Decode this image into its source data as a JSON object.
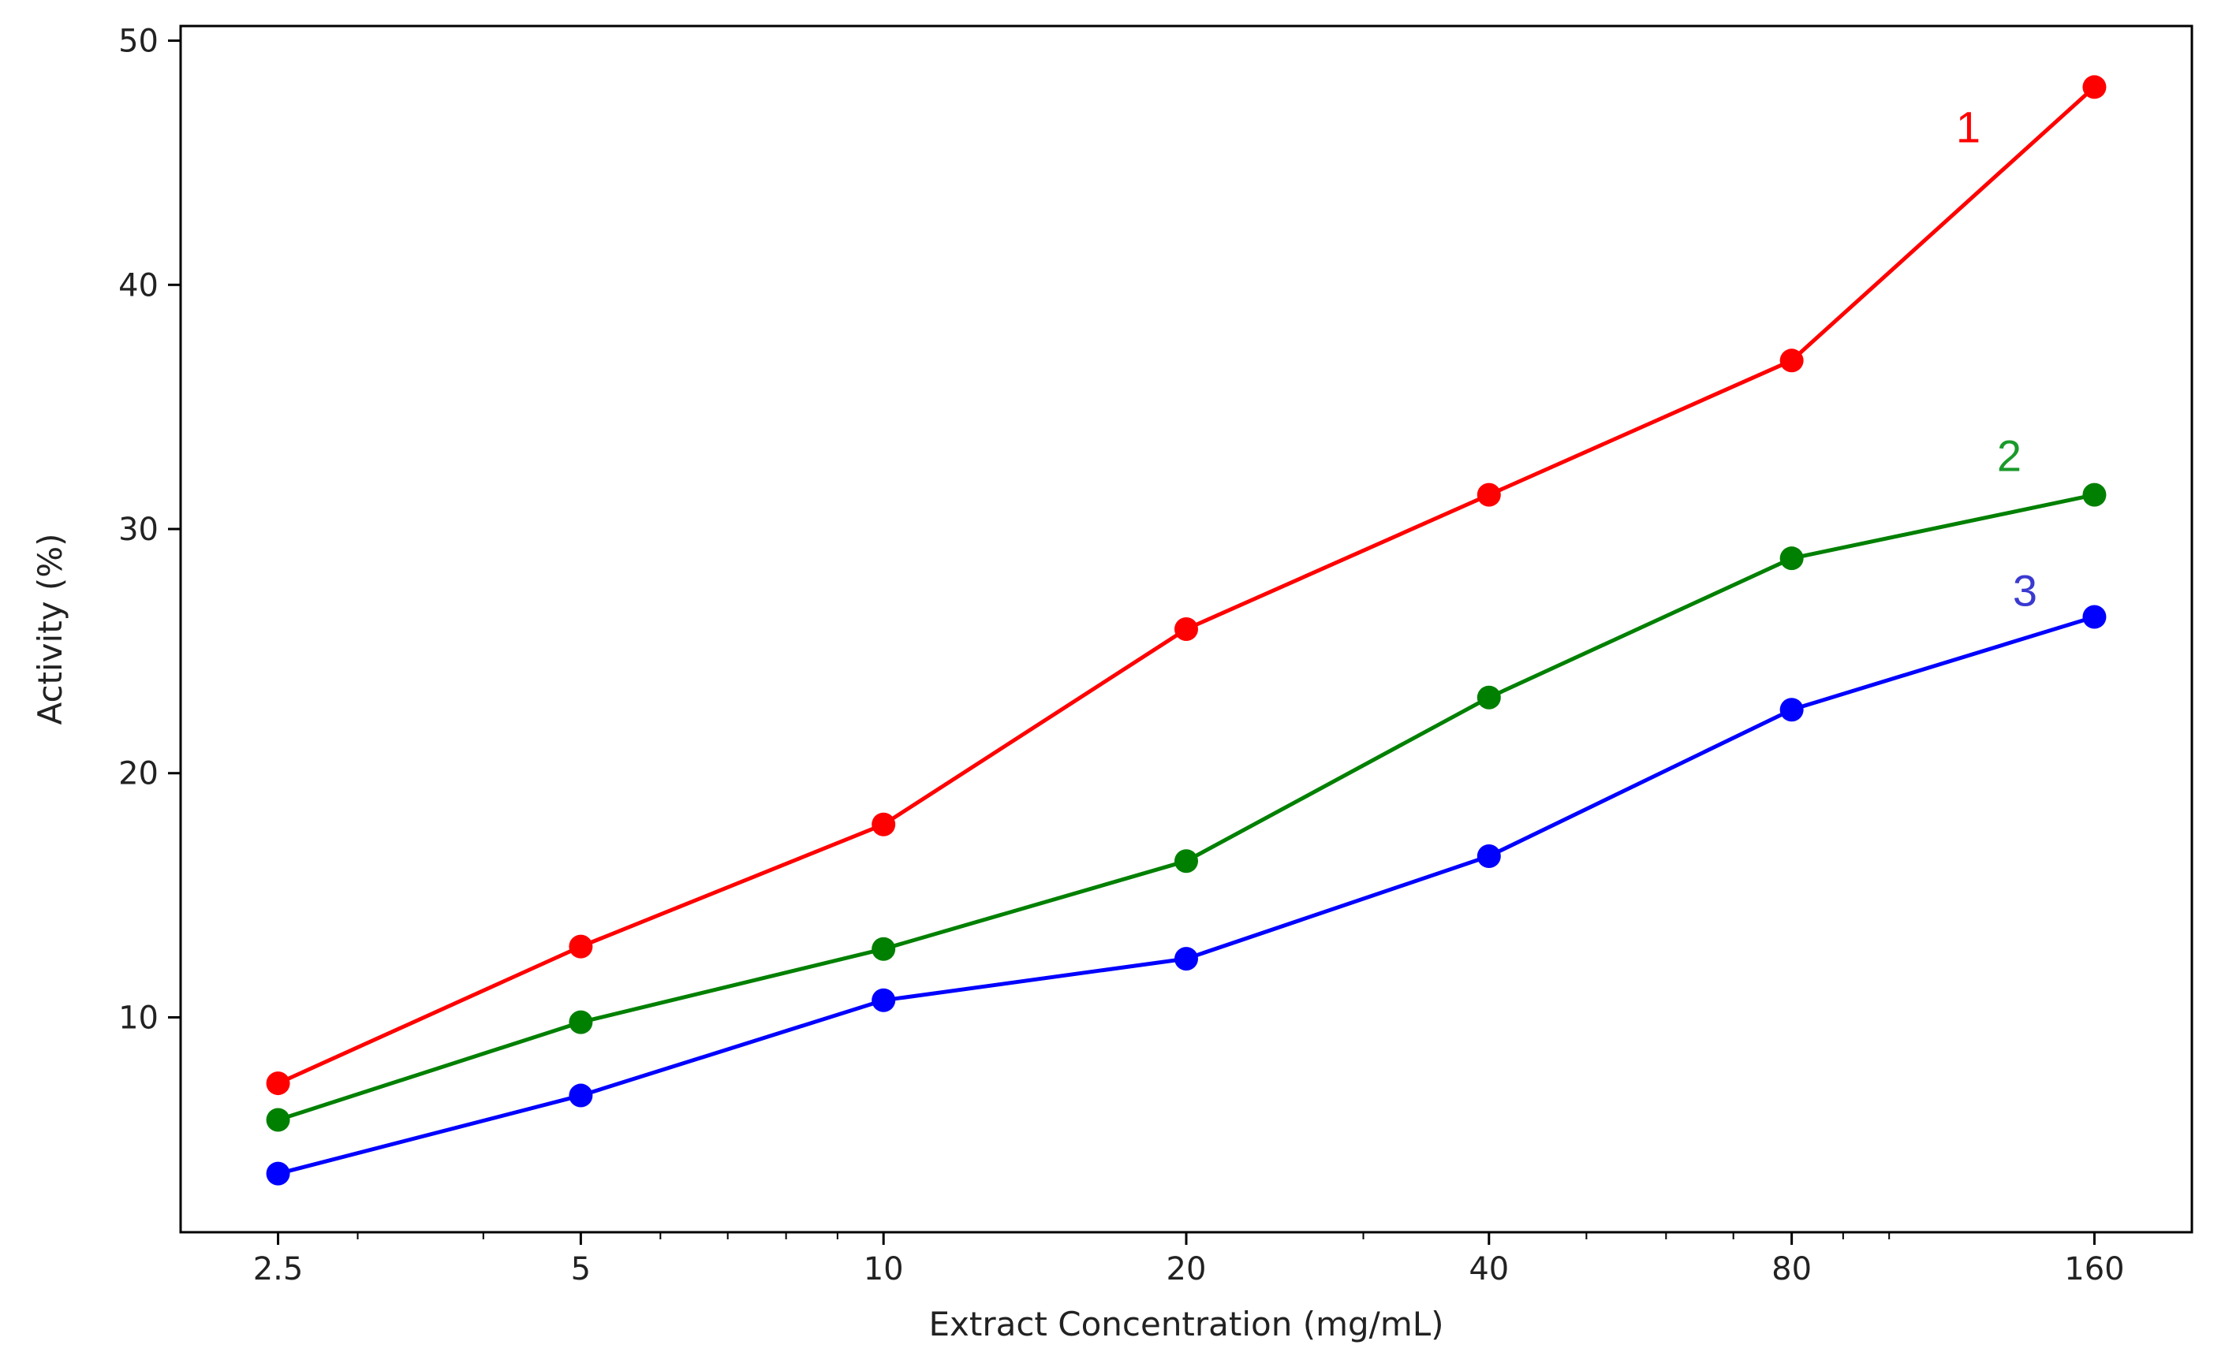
{
  "chart_data": {
    "type": "line",
    "title": "",
    "xlabel": "Extract Concentration (mg/mL)",
    "ylabel": "Activity (%)",
    "x_scale": "log",
    "x": [
      2.5,
      5,
      10,
      20,
      40,
      80,
      160
    ],
    "x_tick_labels": [
      "2.5",
      "5",
      "10",
      "20",
      "40",
      "80",
      "160"
    ],
    "y_ticks": [
      10,
      20,
      30,
      40,
      50
    ],
    "y_tick_labels": [
      "10",
      "20",
      "30",
      "40",
      "50"
    ],
    "xlim": [
      2.0,
      200
    ],
    "ylim": [
      1.2,
      50.6
    ],
    "grid": false,
    "legend": "none",
    "series": [
      {
        "label": "1",
        "color": "#ff0000",
        "values": [
          7.3,
          12.9,
          17.9,
          25.9,
          31.4,
          36.9,
          48.1
        ]
      },
      {
        "label": "2",
        "color": "#008000",
        "label_color": "#1a9a2a",
        "values": [
          5.8,
          9.8,
          12.8,
          16.4,
          23.1,
          28.8,
          31.4
        ]
      },
      {
        "label": "3",
        "color": "#0000ff",
        "label_color": "#3a3ad0",
        "values": [
          3.6,
          6.8,
          10.7,
          12.4,
          16.6,
          22.6,
          26.4
        ]
      }
    ]
  }
}
